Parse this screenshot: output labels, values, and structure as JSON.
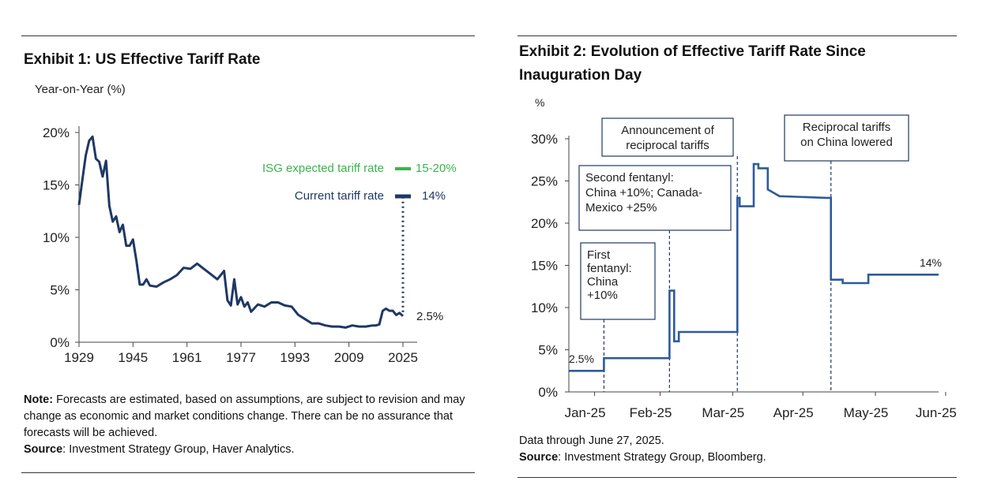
{
  "exhibit1": {
    "title": "Exhibit 1: US Effective Tariff Rate",
    "subtitle": "Year-on-Year (%)",
    "legend_expected": "ISG expected tariff rate",
    "legend_expected_value": "15-20%",
    "legend_current": "Current tariff rate",
    "legend_current_value": "14%",
    "end_value_label": "2.5%",
    "note_label": "Note:",
    "note_text": " Forecasts are estimated, based on assumptions, are subject to revision and may change as economic and market conditions change. There can be no assurance that forecasts will be achieved.",
    "source_label": "Source",
    "source_text": ": Investment Strategy Group, Haver Analytics.",
    "colors": {
      "line": "#1f3864",
      "expected": "#3cb44b"
    }
  },
  "exhibit2": {
    "title_line1": "Exhibit 2: Evolution of Effective Tariff Rate Since",
    "title_line2": "Inauguration Day",
    "y_unit": "%",
    "start_label": "2.5%",
    "end_label": "14%",
    "annotations": [
      {
        "lines": [
          "First",
          "fentanyl:",
          "China",
          "+10%"
        ]
      },
      {
        "lines": [
          "Second fentanyl:",
          "China +10%; Canada-",
          "Mexico +25%"
        ]
      },
      {
        "lines": [
          "Announcement of",
          "reciprocal tariffs"
        ]
      },
      {
        "lines": [
          "Reciprocal tariffs",
          "on China lowered"
        ]
      }
    ],
    "footnote": "Data through June 27, 2025.",
    "source_label": "Source",
    "source_text": ": Investment Strategy Group, Bloomberg.",
    "colors": {
      "line": "#2e5a9c",
      "dashed": "#1f3864"
    }
  },
  "chart_data": [
    {
      "type": "line",
      "title": "Exhibit 1: US Effective Tariff Rate",
      "ylabel": "Year-on-Year (%)",
      "xlim": [
        1929,
        2025
      ],
      "ylim": [
        0,
        20
      ],
      "x_ticks": [
        1929,
        1945,
        1961,
        1977,
        1993,
        2009,
        2025
      ],
      "y_ticks": [
        0,
        5,
        10,
        15,
        20
      ],
      "y_tick_labels": [
        "0%",
        "5%",
        "10%",
        "15%",
        "20%"
      ],
      "series": [
        {
          "x": [
            1929,
            1930,
            1931,
            1932,
            1933,
            1934,
            1935,
            1936,
            1937,
            1938,
            1939,
            1940,
            1941,
            1942,
            1943,
            1944,
            1945,
            1946,
            1947,
            1948,
            1949,
            1950,
            1952,
            1954,
            1956,
            1958,
            1960,
            1962,
            1964,
            1966,
            1968,
            1970,
            1972,
            1973,
            1974,
            1975,
            1976,
            1977,
            1978,
            1979,
            1980,
            1982,
            1984,
            1986,
            1988,
            1990,
            1992,
            1994,
            1996,
            1998,
            2000,
            2002,
            2004,
            2006,
            2008,
            2010,
            2012,
            2014,
            2016,
            2017,
            2018,
            2019,
            2020,
            2021,
            2022,
            2023,
            2024,
            2025
          ],
          "y": [
            13.1,
            15.5,
            17.8,
            19.2,
            19.6,
            17.5,
            17.2,
            15.8,
            17.3,
            13.0,
            11.5,
            12.0,
            10.5,
            11.2,
            9.2,
            9.2,
            9.8,
            7.8,
            5.5,
            5.5,
            6.0,
            5.4,
            5.3,
            5.7,
            6.0,
            6.4,
            7.1,
            7.0,
            7.5,
            7.0,
            6.5,
            6.0,
            6.8,
            4.0,
            3.5,
            6.0,
            3.6,
            4.3,
            3.4,
            3.8,
            2.9,
            3.6,
            3.4,
            3.8,
            3.8,
            3.5,
            3.4,
            2.6,
            2.2,
            1.8,
            1.8,
            1.6,
            1.5,
            1.5,
            1.4,
            1.6,
            1.5,
            1.5,
            1.6,
            1.6,
            1.7,
            3.0,
            3.2,
            3.0,
            3.0,
            2.6,
            2.8,
            2.5
          ]
        }
      ],
      "annotations": [
        {
          "label": "ISG expected tariff rate",
          "value": "15-20%",
          "y": 16.5
        },
        {
          "label": "Current tariff rate",
          "value": "14%",
          "y": 14
        }
      ]
    },
    {
      "type": "line",
      "title": "Exhibit 2: Evolution of Effective Tariff Rate Since Inauguration Day",
      "ylabel": "%",
      "xlim": [
        "2025-01-20",
        "2025-06-27"
      ],
      "ylim": [
        0,
        30
      ],
      "x_ticks": [
        "2025-01-31",
        "2025-02-28",
        "2025-03-31",
        "2025-04-30",
        "2025-05-31",
        "2025-06-30"
      ],
      "x_tick_labels": [
        "Jan-25",
        "Feb-25",
        "Mar-25",
        "Apr-25",
        "May-25",
        "Jun-25"
      ],
      "y_ticks": [
        0,
        5,
        10,
        15,
        20,
        25,
        30
      ],
      "y_tick_labels": [
        "0%",
        "5%",
        "10%",
        "15%",
        "20%",
        "25%",
        "30%"
      ],
      "series": [
        {
          "x": [
            "2025-01-20",
            "2025-02-04",
            "2025-02-04",
            "2025-03-04",
            "2025-03-04",
            "2025-03-06",
            "2025-03-06",
            "2025-03-08",
            "2025-03-08",
            "2025-03-12",
            "2025-03-12",
            "2025-04-02",
            "2025-04-02",
            "2025-04-03",
            "2025-04-03",
            "2025-04-09",
            "2025-04-09",
            "2025-04-11",
            "2025-04-11",
            "2025-04-15",
            "2025-04-15",
            "2025-04-20",
            "2025-05-10",
            "2025-05-12",
            "2025-05-12",
            "2025-05-17",
            "2025-05-17",
            "2025-05-28",
            "2025-05-28",
            "2025-06-27"
          ],
          "y": [
            2.5,
            2.5,
            4.0,
            4.0,
            12.0,
            12.0,
            6.0,
            6.0,
            7.1,
            7.1,
            7.1,
            7.1,
            23.0,
            23.0,
            22.0,
            22.0,
            27.0,
            27.0,
            26.5,
            26.5,
            24.0,
            23.2,
            23.0,
            23.0,
            13.3,
            13.3,
            12.9,
            12.9,
            13.9,
            13.9
          ]
        }
      ],
      "event_dates": [
        "2025-02-04",
        "2025-03-04",
        "2025-04-02",
        "2025-05-12"
      ]
    }
  ]
}
